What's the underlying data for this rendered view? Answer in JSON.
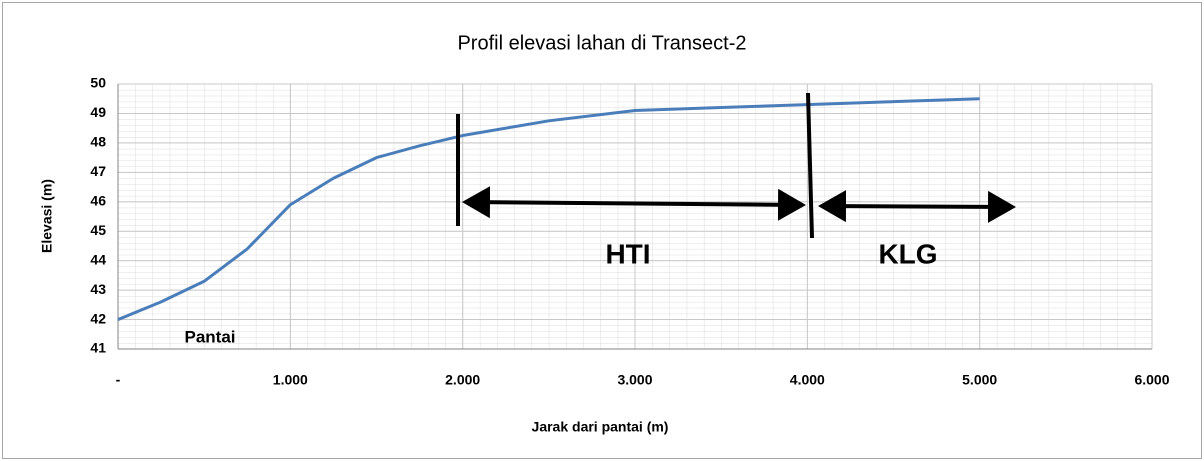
{
  "chart_data": {
    "type": "line",
    "title": "Profil elevasi lahan di Transect-2",
    "x_label": "Jarak dari pantai (m)",
    "y_label": "Elevasi (m)",
    "x": [
      0,
      250,
      500,
      750,
      1000,
      1250,
      1500,
      1750,
      2000,
      2500,
      3000,
      3500,
      4000,
      4500,
      5000
    ],
    "values": [
      42,
      42.6,
      43.3,
      44.4,
      45.9,
      46.8,
      47.5,
      47.9,
      48.25,
      48.75,
      49.1,
      49.2,
      49.3,
      49.4,
      49.5
    ],
    "color": "#4a7ebb",
    "xlim": [
      0,
      6000
    ],
    "xticks": [
      {
        "value": 0,
        "label": "-"
      },
      {
        "value": 1000,
        "label": "1.000"
      },
      {
        "value": 2000,
        "label": "2.000"
      },
      {
        "value": 3000,
        "label": "3.000"
      },
      {
        "value": 4000,
        "label": "4.000"
      },
      {
        "value": 5000,
        "label": "5.000"
      },
      {
        "value": 6000,
        "label": "6.000"
      }
    ],
    "ylim": [
      41,
      50
    ],
    "yticks": [
      41,
      42,
      43,
      44,
      45,
      46,
      47,
      48,
      49,
      50
    ],
    "grid": true,
    "annotations": [
      "Pantai",
      "HTI",
      "KLG"
    ]
  }
}
